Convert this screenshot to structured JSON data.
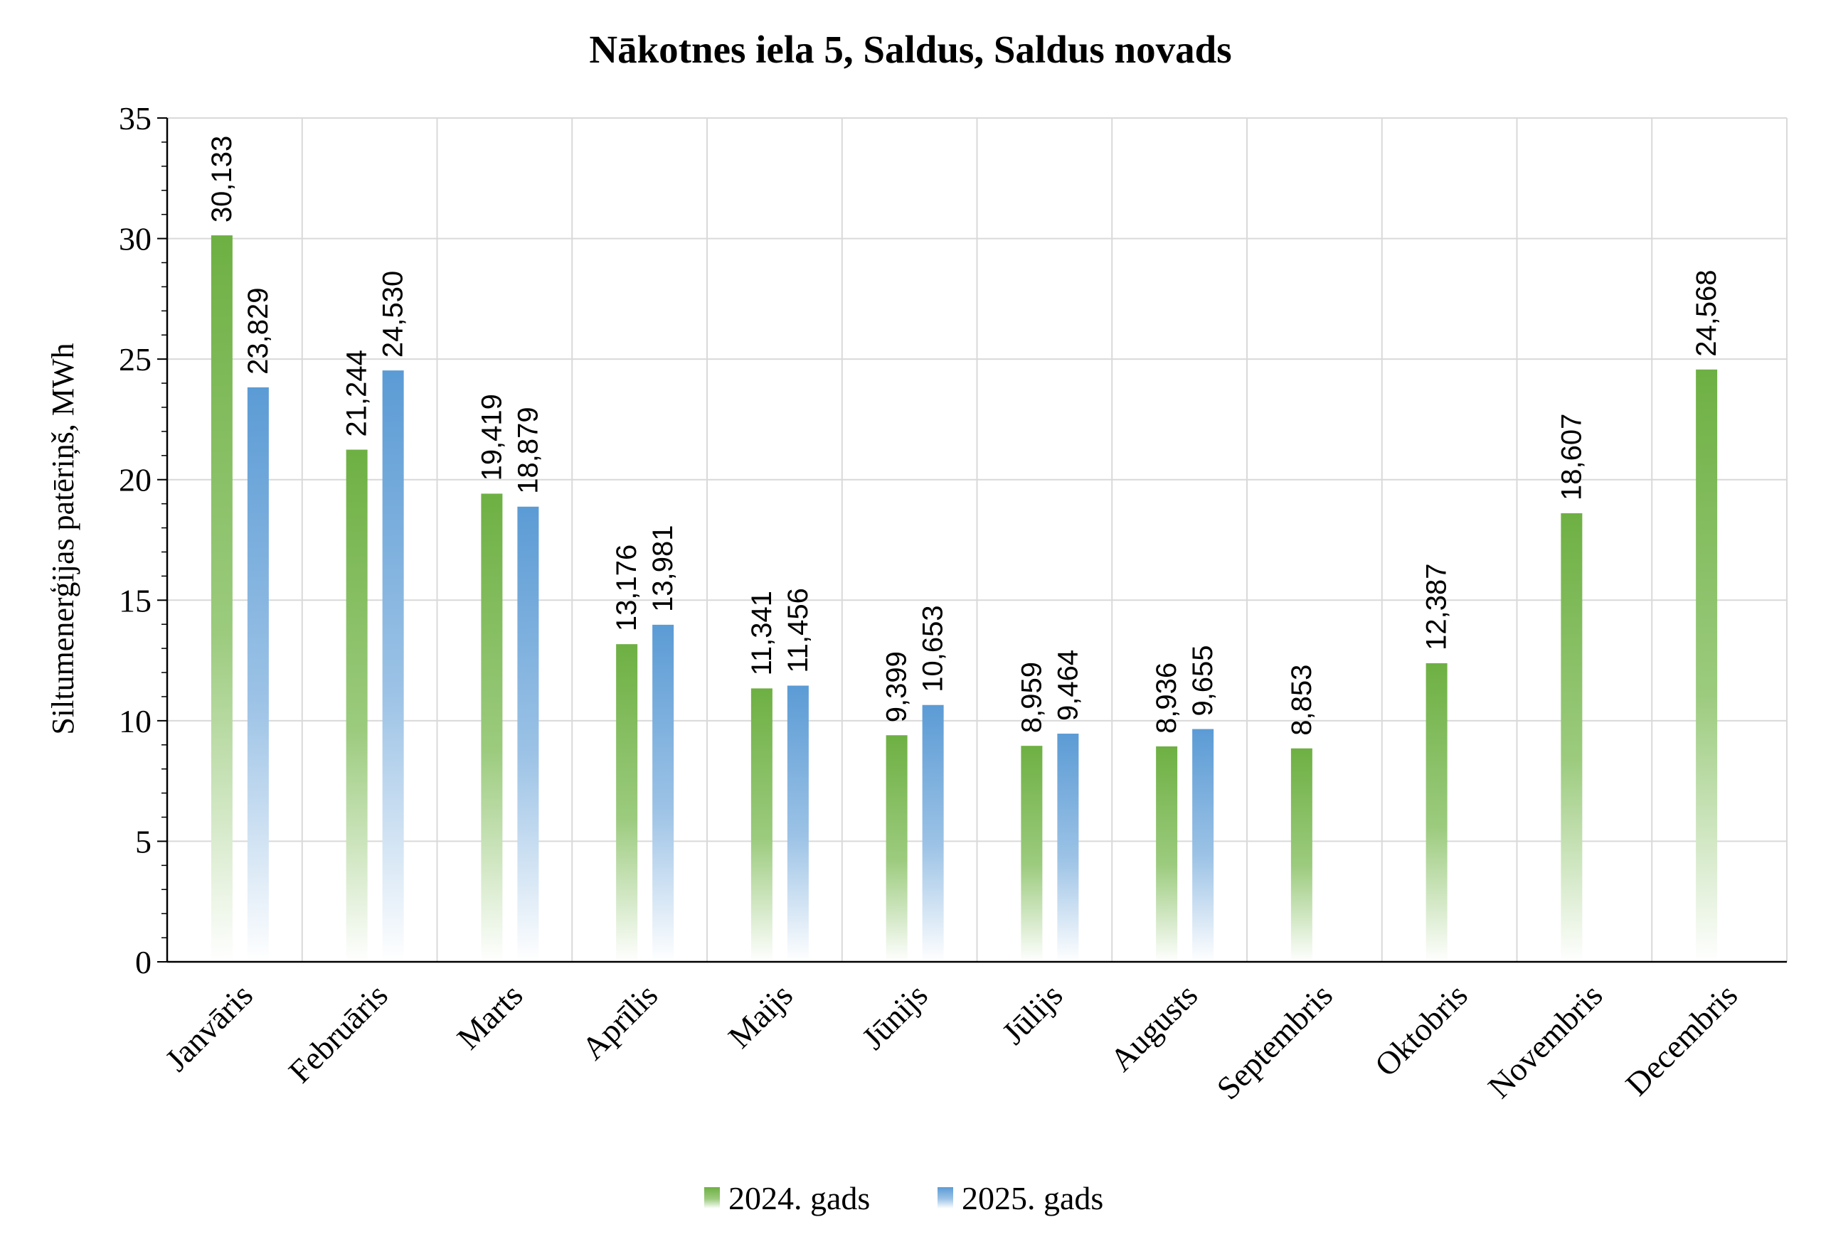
{
  "chart_data": {
    "type": "bar",
    "title": "Nākotnes iela 5, Saldus, Saldus novads",
    "ylabel": "Siltumenerģijas patēriņš, MWh",
    "xlabel": "",
    "ylim": [
      0,
      35
    ],
    "yticks": [
      0,
      5,
      10,
      15,
      20,
      25,
      30,
      35
    ],
    "grid": true,
    "legend_position": "bottom",
    "categories": [
      "Janvāris",
      "Februāris",
      "Marts",
      "Aprīlis",
      "Maijs",
      "Jūnijs",
      "Jūlijs",
      "Augusts",
      "Septembris",
      "Oktobris",
      "Novembris",
      "Decembris"
    ],
    "series": [
      {
        "name": "2024. gads",
        "color": "#70ad47",
        "values": [
          30.133,
          21.244,
          19.419,
          13.176,
          11.341,
          9.399,
          8.959,
          8.936,
          8.853,
          12.387,
          18.607,
          24.568
        ],
        "labels": [
          "30,133",
          "21,244",
          "19,419",
          "13,176",
          "11,341",
          "9,399",
          "8,959",
          "8,936",
          "8,853",
          "12,387",
          "18,607",
          "24,568"
        ]
      },
      {
        "name": "2025. gads",
        "color": "#5b9bd5",
        "values": [
          23.829,
          24.53,
          18.879,
          13.981,
          11.456,
          10.653,
          9.464,
          9.655,
          null,
          null,
          null,
          null
        ],
        "labels": [
          "23,829",
          "24,530",
          "18,879",
          "13,981",
          "11,456",
          "10,653",
          "9,464",
          "9,655",
          null,
          null,
          null,
          null
        ]
      }
    ]
  }
}
